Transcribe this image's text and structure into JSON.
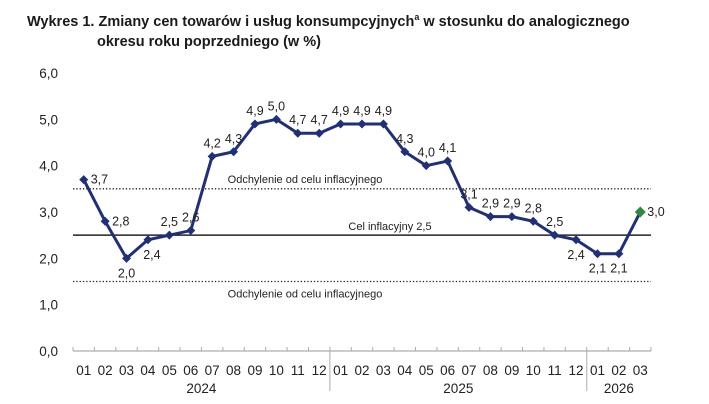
{
  "title_line1": "Wykres 1. Zmiany cen towarów i usług konsumpcyjnych",
  "title_sup": "a",
  "title_line1_end": " w stosunku do analogicznego",
  "title_line2": "okresu roku poprzedniego (w %)",
  "chart_data": {
    "type": "line",
    "categories": [
      "01",
      "02",
      "03",
      "04",
      "05",
      "06",
      "07",
      "08",
      "09",
      "10",
      "11",
      "12",
      "01",
      "02",
      "03",
      "04",
      "05",
      "06",
      "07",
      "08",
      "09",
      "10",
      "11",
      "12",
      "01",
      "02",
      "03"
    ],
    "year_groups": [
      {
        "label": "2024",
        "count": 12
      },
      {
        "label": "2025",
        "count": 12
      },
      {
        "label": "2026",
        "count": 3
      }
    ],
    "values": [
      3.7,
      2.8,
      2.0,
      2.4,
      2.5,
      2.6,
      4.2,
      4.3,
      4.9,
      5.0,
      4.7,
      4.7,
      4.9,
      4.9,
      4.9,
      4.3,
      4.0,
      4.1,
      3.1,
      2.9,
      2.9,
      2.8,
      2.5,
      2.4,
      2.1,
      2.1,
      3.0
    ],
    "data_labels": [
      "3,7",
      "2,8",
      "2,0",
      "2,4",
      "2,5",
      "2,6",
      "4,2",
      "4,3",
      "4,9",
      "5,0",
      "4,7",
      "4,7",
      "4,9",
      "4,9",
      "4,9",
      "4,3",
      "4,0",
      "4,1",
      "3,1",
      "2,9",
      "2,9",
      "2,8",
      "2,5",
      "2,4",
      "2,1",
      "2,1",
      "3,0"
    ],
    "yticks": [
      "0,0",
      "1,0",
      "2,0",
      "3,0",
      "4,0",
      "5,0",
      "6,0"
    ],
    "ylim": [
      0,
      6
    ],
    "reference_lines": [
      {
        "value": 3.5,
        "label": "Odchylenie od celu inflacyjnego",
        "style": "dotted"
      },
      {
        "value": 2.5,
        "label": "Cel inflacyjny 2,5",
        "style": "solid"
      },
      {
        "value": 1.5,
        "label": "Odchylenie od celu inflacyjnego",
        "style": "dotted"
      }
    ],
    "colors": {
      "line": "#1f2f7a",
      "last_point": "#2e8b3e"
    },
    "grid": false
  }
}
